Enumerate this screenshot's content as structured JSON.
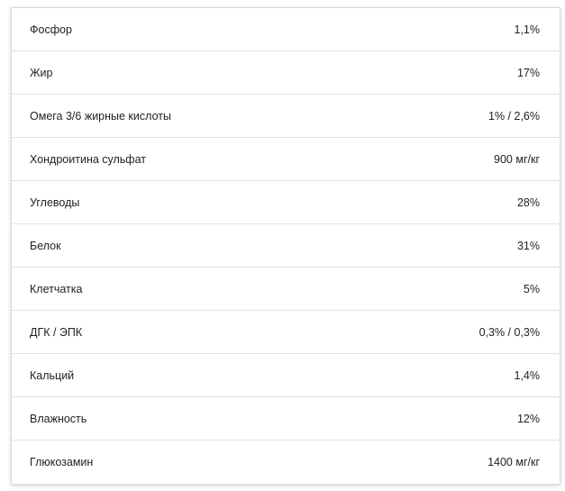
{
  "rows": [
    {
      "label": "Фосфор",
      "value": "1,1%"
    },
    {
      "label": "Жир",
      "value": "17%"
    },
    {
      "label": "Омега 3/6 жирные кислоты",
      "value": "1% / 2,6%"
    },
    {
      "label": "Хондроитина сульфат",
      "value": "900 мг/кг"
    },
    {
      "label": "Углеводы",
      "value": "28%"
    },
    {
      "label": "Белок",
      "value": "31%"
    },
    {
      "label": "Клетчатка",
      "value": "5%"
    },
    {
      "label": "ДГК / ЭПК",
      "value": "0,3% / 0,3%"
    },
    {
      "label": "Кальций",
      "value": "1,4%"
    },
    {
      "label": "Влажность",
      "value": "12%"
    },
    {
      "label": "Глюкозамин",
      "value": "1400 мг/кг"
    }
  ]
}
